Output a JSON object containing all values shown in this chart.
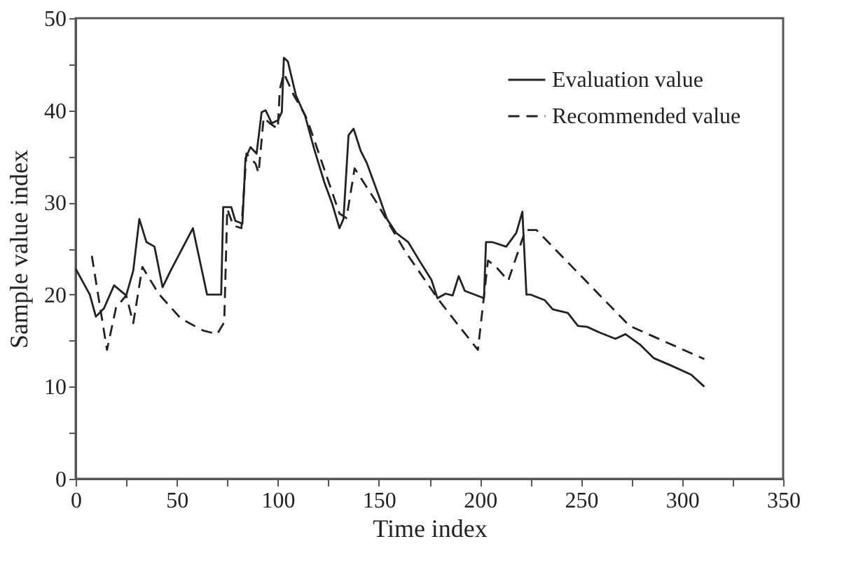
{
  "chart_data": {
    "type": "line",
    "xlabel": "Time index",
    "ylabel": "Sample value index",
    "xlim": [
      0,
      350
    ],
    "ylim": [
      0,
      50
    ],
    "xticks": [
      0,
      {
        "value": 25,
        "label": null
      },
      50,
      {
        "value": 75,
        "label": null
      },
      100,
      {
        "value": 125,
        "label": null
      },
      150,
      {
        "value": 175,
        "label": null
      },
      200,
      {
        "value": 225,
        "label": null
      },
      250,
      {
        "value": 275,
        "label": null
      },
      300,
      {
        "value": 325,
        "label": null
      },
      350
    ],
    "yticks": [
      0,
      {
        "value": 5,
        "label": null
      },
      10,
      {
        "value": 15,
        "label": null
      },
      20,
      {
        "value": 25,
        "label": null
      },
      30,
      {
        "value": 35,
        "label": null
      },
      40,
      {
        "value": 45,
        "label": null
      },
      50
    ],
    "grid": false,
    "legend": "top right",
    "series": [
      {
        "name": "Evaluation value",
        "color": "#222222",
        "line_style": "solid",
        "x": [
          0,
          7,
          10,
          14,
          19,
          25,
          28.5,
          31.5,
          35,
          39,
          43,
          47,
          58,
          65,
          72,
          73,
          77,
          79,
          82.5,
          84,
          86.5,
          89.5,
          92,
          94,
          97,
          100,
          102,
          103,
          105,
          109,
          113.5,
          118,
          123,
          127,
          130.5,
          132.5,
          135,
          137.5,
          141,
          144,
          150,
          154,
          158.5,
          164.5,
          170,
          176,
          179,
          183,
          186.5,
          189.5,
          192.5,
          202,
          203,
          206,
          213,
          218,
          221,
          223,
          225,
          232,
          236,
          243.5,
          248.5,
          253,
          259,
          267,
          272,
          279,
          286,
          294.5,
          304.5,
          311
        ],
        "values": [
          22.8,
          20,
          17.6,
          18.5,
          21,
          19.9,
          22.6,
          28.2,
          25.7,
          25.2,
          20.8,
          22.6,
          27.2,
          20,
          20,
          29.5,
          29.5,
          28,
          27.7,
          34.8,
          36,
          35.3,
          39.8,
          40,
          38.6,
          38.9,
          39.8,
          45.7,
          45.3,
          41.6,
          39.4,
          35.8,
          32.2,
          29.8,
          27.2,
          28.2,
          37.3,
          38,
          35.6,
          34.3,
          30.7,
          28.2,
          26.7,
          25.7,
          23.7,
          21.6,
          19.6,
          20.1,
          19.9,
          22,
          20.4,
          19.6,
          25.7,
          25.7,
          25.2,
          26.7,
          29,
          20,
          20,
          19.4,
          18.4,
          18,
          16.6,
          16.5,
          15.9,
          15.2,
          15.7,
          14.6,
          13.1,
          12.3,
          11.3,
          10
        ]
      },
      {
        "name": "Recommended value",
        "color": "#222222",
        "line_style": "dashed",
        "x": [
          8,
          15.5,
          20,
          25,
          28.5,
          33,
          41,
          52,
          63,
          70,
          73.5,
          75,
          78,
          82,
          84.5,
          89,
          90.5,
          93,
          96,
          100,
          101,
          103,
          108,
          113.5,
          115.5,
          130.5,
          134,
          138,
          148,
          163,
          179,
          188.5,
          199,
          204,
          208,
          214,
          222.5,
          228,
          274,
          311
        ],
        "values": [
          24.2,
          14,
          18.6,
          19.9,
          16.9,
          23,
          20.1,
          17.4,
          16.1,
          15.7,
          17,
          29.3,
          27.5,
          27.2,
          35.3,
          34.2,
          33.2,
          39.2,
          38.6,
          38,
          42.3,
          44,
          41.6,
          39.5,
          38.4,
          28.8,
          28.3,
          33.7,
          30.3,
          24.7,
          19.6,
          16.9,
          14,
          23.7,
          23,
          21.5,
          27,
          27,
          16.6,
          13
        ]
      }
    ]
  }
}
